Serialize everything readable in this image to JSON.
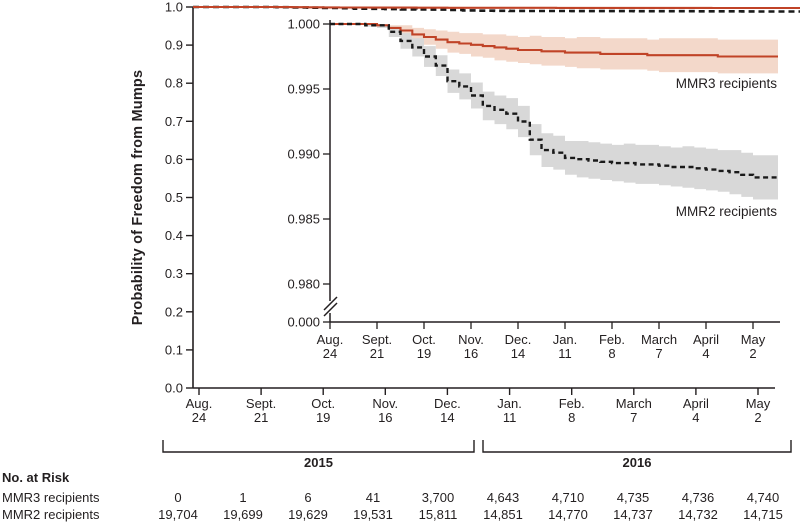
{
  "colors": {
    "background": "#ffffff",
    "axis": "#231f20",
    "mmr3_line": "#c04327",
    "mmr3_band": "#f3d8ca",
    "mmr2_line": "#1a1a1a",
    "mmr2_band": "#d8d8d8"
  },
  "main_chart": {
    "ylabel": "Probability of Freedom from Mumps",
    "yticks": [
      "1.0",
      "0.9",
      "0.8",
      "0.7",
      "0.6",
      "0.5",
      "0.4",
      "0.3",
      "0.2",
      "0.1",
      "0.0"
    ],
    "xticks": [
      [
        "Aug.",
        "24"
      ],
      [
        "Sept.",
        "21"
      ],
      [
        "Oct.",
        "19"
      ],
      [
        "Nov.",
        "16"
      ],
      [
        "Dec.",
        "14"
      ],
      [
        "Jan.",
        "11"
      ],
      [
        "Feb.",
        "8"
      ],
      [
        "March",
        "7"
      ],
      [
        "April",
        "4"
      ],
      [
        "May",
        "2"
      ]
    ],
    "year_left": "2015",
    "year_right": "2016"
  },
  "inset": {
    "yticks": [
      "1.000",
      "0.995",
      "0.990",
      "0.985",
      "0.980",
      "0.000"
    ],
    "xticks": [
      [
        "Aug.",
        "24"
      ],
      [
        "Sept.",
        "21"
      ],
      [
        "Oct.",
        "19"
      ],
      [
        "Nov.",
        "16"
      ],
      [
        "Dec.",
        "14"
      ],
      [
        "Jan.",
        "11"
      ],
      [
        "Feb.",
        "8"
      ],
      [
        "March",
        "7"
      ],
      [
        "April",
        "4"
      ],
      [
        "May",
        "2"
      ]
    ],
    "mmr3_label": "MMR3 recipients",
    "mmr2_label": "MMR2 recipients"
  },
  "risk_table": {
    "header": "No. at Risk",
    "rows": [
      {
        "label": "MMR3 recipients",
        "values": [
          "0",
          "1",
          "6",
          "41",
          "3,700",
          "4,643",
          "4,710",
          "4,735",
          "4,736",
          "4,740"
        ]
      },
      {
        "label": "MMR2 recipients",
        "values": [
          "19,704",
          "19,699",
          "19,629",
          "19,531",
          "15,811",
          "14,851",
          "14,770",
          "14,737",
          "14,732",
          "14,715"
        ]
      }
    ]
  },
  "chart_data": {
    "type": "line",
    "description": "Kaplan-Meier estimates of probability of freedom from mumps for MMR3 vs MMR2 recipients with shaded 95% CI bands; main axis spans 0.0-1.0, inset magnifies 0.980-1.000 with a broken y-axis down to 0.000",
    "x_tick_labels": [
      "Aug. 24",
      "Sept. 21",
      "Oct. 19",
      "Nov. 16",
      "Dec. 14",
      "Jan. 11",
      "Feb. 8",
      "March 7",
      "April 4",
      "May 2"
    ],
    "x_tick_days": [
      0,
      28,
      56,
      84,
      112,
      140,
      168,
      196,
      224,
      252
    ],
    "x_days": [
      0,
      7,
      14,
      21,
      28,
      35,
      42,
      49,
      56,
      63,
      70,
      77,
      84,
      91,
      98,
      105,
      112,
      119,
      126,
      133,
      140,
      147,
      154,
      161,
      168,
      175,
      182,
      189,
      196,
      203,
      210,
      217,
      224,
      231,
      238,
      245,
      252
    ],
    "series": [
      {
        "name": "MMR3 recipients",
        "line": "solid",
        "color": "#c04327",
        "band_color": "#f3d8ca",
        "values": [
          1.0,
          1.0,
          1.0,
          1.0,
          0.9999,
          0.9997,
          0.9995,
          0.9992,
          0.999,
          0.9988,
          0.9986,
          0.9985,
          0.9984,
          0.9983,
          0.9982,
          0.9981,
          0.998,
          0.998,
          0.9979,
          0.9979,
          0.9978,
          0.9978,
          0.9978,
          0.9977,
          0.9977,
          0.9977,
          0.9977,
          0.9976,
          0.9976,
          0.9976,
          0.9976,
          0.9976,
          0.9976,
          0.9975,
          0.9975,
          0.9975,
          0.9975
        ],
        "ci_halfwidth": [
          0,
          0,
          0,
          0,
          0.0001,
          0.0002,
          0.0004,
          0.0005,
          0.0006,
          0.0007,
          0.0008,
          0.0008,
          0.0009,
          0.0009,
          0.001,
          0.001,
          0.001,
          0.0011,
          0.0011,
          0.0011,
          0.0011,
          0.0012,
          0.0012,
          0.0012,
          0.0012,
          0.0012,
          0.0012,
          0.0012,
          0.0013,
          0.0013,
          0.0013,
          0.0013,
          0.0013,
          0.0013,
          0.0013,
          0.0013,
          0.0013
        ]
      },
      {
        "name": "MMR2 recipients",
        "line": "dashed",
        "color": "#1a1a1a",
        "band_color": "#d8d8d8",
        "values": [
          1.0,
          1.0,
          1.0,
          0.9999,
          0.9999,
          0.9994,
          0.9987,
          0.9982,
          0.9975,
          0.9968,
          0.9956,
          0.9952,
          0.9945,
          0.9937,
          0.9934,
          0.9931,
          0.9925,
          0.9911,
          0.9903,
          0.9901,
          0.9897,
          0.9896,
          0.9895,
          0.9894,
          0.9893,
          0.9893,
          0.9892,
          0.9892,
          0.9891,
          0.989,
          0.989,
          0.9889,
          0.9888,
          0.9887,
          0.9886,
          0.9884,
          0.9882
        ],
        "ci_halfwidth": [
          0,
          0,
          0,
          0.0001,
          0.0002,
          0.0004,
          0.0006,
          0.0007,
          0.0008,
          0.0008,
          0.0009,
          0.001,
          0.001,
          0.0011,
          0.0011,
          0.0012,
          0.0012,
          0.0012,
          0.0013,
          0.0013,
          0.0013,
          0.0014,
          0.0014,
          0.0014,
          0.0014,
          0.0015,
          0.0015,
          0.0015,
          0.0015,
          0.0015,
          0.0016,
          0.0016,
          0.0016,
          0.0016,
          0.0017,
          0.0017,
          0.0017
        ]
      }
    ],
    "main_ylim": [
      0.0,
      1.0
    ],
    "inset_ylim_visible": [
      0.98,
      1.0
    ],
    "inset_axis_break_to": 0.0,
    "grid": false,
    "legend_position": "labels-inline-right"
  }
}
